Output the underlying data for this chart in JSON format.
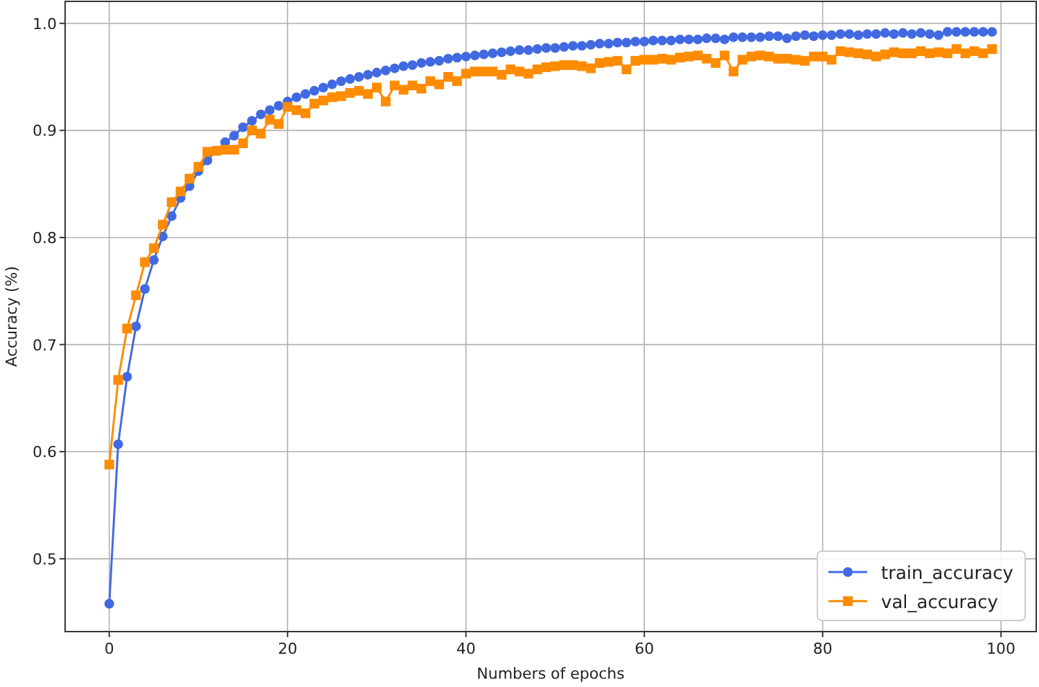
{
  "chart_data": {
    "type": "line",
    "xlabel": "Numbers of epochs",
    "ylabel": "Accuracy (%)",
    "x": [
      0,
      1,
      2,
      3,
      4,
      5,
      6,
      7,
      8,
      9,
      10,
      11,
      12,
      13,
      14,
      15,
      16,
      17,
      18,
      19,
      20,
      21,
      22,
      23,
      24,
      25,
      26,
      27,
      28,
      29,
      30,
      31,
      32,
      33,
      34,
      35,
      36,
      37,
      38,
      39,
      40,
      41,
      42,
      43,
      44,
      45,
      46,
      47,
      48,
      49,
      50,
      51,
      52,
      53,
      54,
      55,
      56,
      57,
      58,
      59,
      60,
      61,
      62,
      63,
      64,
      65,
      66,
      67,
      68,
      69,
      70,
      71,
      72,
      73,
      74,
      75,
      76,
      77,
      78,
      79,
      80,
      81,
      82,
      83,
      84,
      85,
      86,
      87,
      88,
      89,
      90,
      91,
      92,
      93,
      94,
      95,
      96,
      97,
      98,
      99
    ],
    "xlim": [
      -4.95,
      103.95
    ],
    "xticks": [
      0,
      20,
      40,
      60,
      80,
      100
    ],
    "ylim": [
      0.432,
      1.0205
    ],
    "yticks": [
      0.5,
      0.6,
      0.7,
      0.8,
      0.9,
      {
        "value": 1.0,
        "label": "1.0"
      }
    ],
    "grid": true,
    "legend": "bottom right",
    "series": [
      {
        "name": "train_accuracy",
        "color": "#4169e1",
        "marker": "circle",
        "values": [
          0.458,
          0.607,
          0.67,
          0.717,
          0.752,
          0.779,
          0.801,
          0.82,
          0.837,
          0.848,
          0.862,
          0.872,
          0.881,
          0.889,
          0.895,
          0.903,
          0.909,
          0.915,
          0.919,
          0.923,
          0.927,
          0.931,
          0.934,
          0.937,
          0.94,
          0.943,
          0.946,
          0.948,
          0.95,
          0.952,
          0.954,
          0.956,
          0.958,
          0.96,
          0.961,
          0.963,
          0.964,
          0.965,
          0.967,
          0.968,
          0.969,
          0.97,
          0.971,
          0.972,
          0.973,
          0.974,
          0.975,
          0.975,
          0.976,
          0.977,
          0.977,
          0.978,
          0.979,
          0.979,
          0.98,
          0.981,
          0.981,
          0.982,
          0.982,
          0.983,
          0.983,
          0.984,
          0.984,
          0.984,
          0.985,
          0.985,
          0.985,
          0.986,
          0.986,
          0.985,
          0.987,
          0.987,
          0.987,
          0.987,
          0.988,
          0.988,
          0.986,
          0.988,
          0.989,
          0.988,
          0.989,
          0.989,
          0.99,
          0.99,
          0.989,
          0.99,
          0.99,
          0.991,
          0.99,
          0.991,
          0.99,
          0.991,
          0.99,
          0.989,
          0.992,
          0.992,
          0.992,
          0.992,
          0.992,
          0.992
        ]
      },
      {
        "name": "val_accuracy",
        "color": "#ff8c00",
        "marker": "square",
        "values": [
          0.588,
          0.667,
          0.715,
          0.746,
          0.777,
          0.79,
          0.812,
          0.833,
          0.843,
          0.855,
          0.866,
          0.88,
          0.881,
          0.882,
          0.882,
          0.888,
          0.9,
          0.897,
          0.91,
          0.906,
          0.922,
          0.919,
          0.916,
          0.925,
          0.928,
          0.931,
          0.932,
          0.935,
          0.937,
          0.934,
          0.94,
          0.927,
          0.942,
          0.938,
          0.942,
          0.939,
          0.946,
          0.943,
          0.95,
          0.946,
          0.953,
          0.955,
          0.955,
          0.955,
          0.952,
          0.957,
          0.955,
          0.953,
          0.957,
          0.959,
          0.96,
          0.961,
          0.961,
          0.96,
          0.958,
          0.963,
          0.964,
          0.965,
          0.957,
          0.965,
          0.966,
          0.966,
          0.967,
          0.966,
          0.968,
          0.969,
          0.97,
          0.967,
          0.963,
          0.97,
          0.955,
          0.966,
          0.969,
          0.97,
          0.969,
          0.967,
          0.967,
          0.966,
          0.965,
          0.969,
          0.969,
          0.966,
          0.974,
          0.973,
          0.972,
          0.971,
          0.969,
          0.971,
          0.973,
          0.972,
          0.972,
          0.974,
          0.972,
          0.973,
          0.972,
          0.976,
          0.972,
          0.974,
          0.972,
          0.976
        ]
      }
    ]
  }
}
